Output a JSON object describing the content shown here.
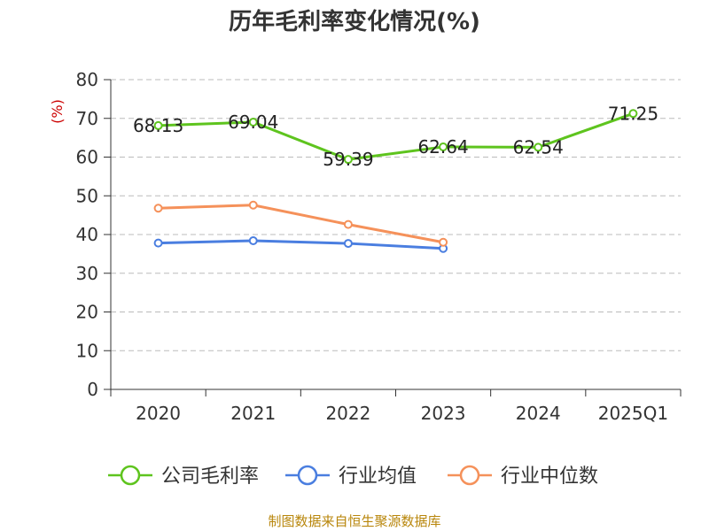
{
  "chart_data": {
    "type": "line",
    "title": "历年毛利率变化情况(%)",
    "ylabel": "(%)",
    "ylim": [
      0,
      80
    ],
    "yticks": [
      0,
      10,
      20,
      30,
      40,
      50,
      60,
      70,
      80
    ],
    "categories": [
      "2020",
      "2021",
      "2022",
      "2023",
      "2024",
      "2025Q1"
    ],
    "grid": true,
    "legend_position": "bottom",
    "series": [
      {
        "name": "公司毛利率",
        "color": "#5ec41e",
        "show_labels": true,
        "values": [
          68.13,
          69.04,
          59.39,
          62.64,
          62.54,
          71.25
        ]
      },
      {
        "name": "行业均值",
        "color": "#4a7ee0",
        "show_labels": false,
        "values": [
          37.8,
          38.4,
          37.7,
          36.4,
          null,
          null
        ]
      },
      {
        "name": "行业中位数",
        "color": "#f5915a",
        "show_labels": false,
        "values": [
          46.8,
          47.6,
          42.6,
          38.0,
          null,
          null
        ]
      }
    ]
  },
  "source": "制图数据来自恒生聚源数据库"
}
